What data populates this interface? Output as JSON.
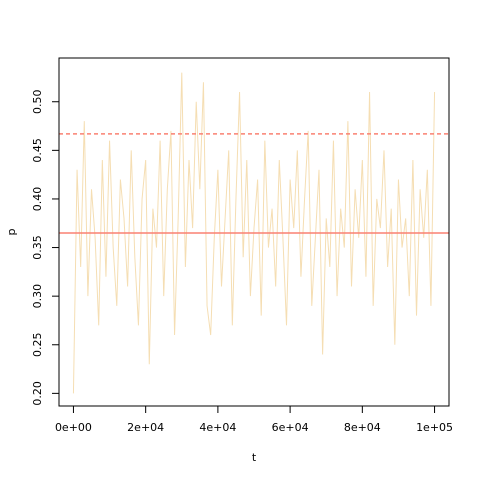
{
  "chart_data": {
    "type": "line",
    "xlabel": "t",
    "ylabel": "p",
    "x": [
      0,
      1000,
      2000,
      3000,
      4000,
      5000,
      6000,
      7000,
      8000,
      9000,
      10000,
      11000,
      12000,
      13000,
      14000,
      15000,
      16000,
      17000,
      18000,
      19000,
      20000,
      21000,
      22000,
      23000,
      24000,
      25000,
      26000,
      27000,
      28000,
      29000,
      30000,
      31000,
      32000,
      33000,
      34000,
      35000,
      36000,
      37000,
      38000,
      39000,
      40000,
      41000,
      42000,
      43000,
      44000,
      45000,
      46000,
      47000,
      48000,
      49000,
      50000,
      51000,
      52000,
      53000,
      54000,
      55000,
      56000,
      57000,
      58000,
      59000,
      60000,
      61000,
      62000,
      63000,
      64000,
      65000,
      66000,
      67000,
      68000,
      69000,
      70000,
      71000,
      72000,
      73000,
      74000,
      75000,
      76000,
      77000,
      78000,
      79000,
      80000,
      81000,
      82000,
      83000,
      84000,
      85000,
      86000,
      87000,
      88000,
      89000,
      90000,
      91000,
      92000,
      93000,
      94000,
      95000,
      96000,
      97000,
      98000,
      99000,
      100000
    ],
    "values": [
      0.2,
      0.43,
      0.33,
      0.48,
      0.3,
      0.41,
      0.36,
      0.27,
      0.44,
      0.32,
      0.46,
      0.35,
      0.29,
      0.42,
      0.38,
      0.31,
      0.45,
      0.34,
      0.27,
      0.4,
      0.44,
      0.23,
      0.39,
      0.35,
      0.46,
      0.3,
      0.41,
      0.47,
      0.26,
      0.38,
      0.53,
      0.33,
      0.44,
      0.37,
      0.5,
      0.41,
      0.52,
      0.29,
      0.26,
      0.36,
      0.43,
      0.31,
      0.38,
      0.45,
      0.27,
      0.4,
      0.51,
      0.34,
      0.44,
      0.3,
      0.37,
      0.42,
      0.28,
      0.46,
      0.35,
      0.39,
      0.31,
      0.44,
      0.36,
      0.27,
      0.42,
      0.37,
      0.45,
      0.32,
      0.4,
      0.47,
      0.29,
      0.36,
      0.43,
      0.24,
      0.38,
      0.33,
      0.46,
      0.3,
      0.39,
      0.35,
      0.48,
      0.31,
      0.41,
      0.36,
      0.44,
      0.32,
      0.51,
      0.29,
      0.4,
      0.37,
      0.45,
      0.33,
      0.39,
      0.25,
      0.42,
      0.35,
      0.38,
      0.3,
      0.44,
      0.28,
      0.41,
      0.36,
      0.43,
      0.29,
      0.51
    ],
    "color": "#f5deb3",
    "hlines": [
      {
        "value": 0.365,
        "style": "solid",
        "color": "#fa8072"
      },
      {
        "value": 0.467,
        "style": "dashed",
        "color": "#fa8072"
      }
    ],
    "xlim": [
      -4000,
      104000
    ],
    "ylim": [
      0.187,
      0.545
    ],
    "xticks": [
      {
        "value": 0,
        "label": "0e+00"
      },
      {
        "value": 20000,
        "label": "2e+04"
      },
      {
        "value": 40000,
        "label": "4e+04"
      },
      {
        "value": 60000,
        "label": "6e+04"
      },
      {
        "value": 80000,
        "label": "8e+04"
      },
      {
        "value": 100000,
        "label": "1e+05"
      }
    ],
    "yticks": [
      {
        "value": 0.2,
        "label": "0.20"
      },
      0.25,
      {
        "value": 0.3,
        "label": "0.30"
      },
      0.35,
      {
        "value": 0.4,
        "label": "0.40"
      },
      0.45,
      {
        "value": 0.5,
        "label": "0.50"
      }
    ]
  }
}
